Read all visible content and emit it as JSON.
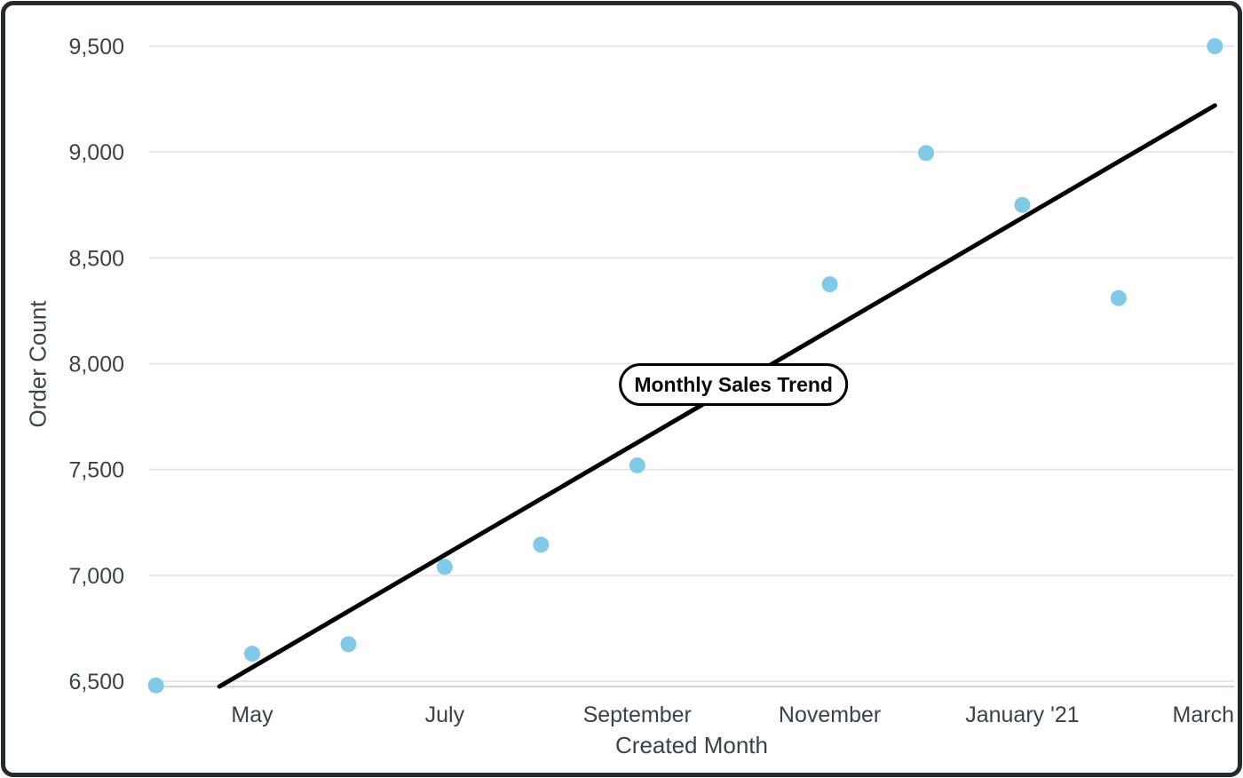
{
  "frame": {
    "border_color": "#242B2E",
    "background": "#FFFFFF"
  },
  "chart_data": {
    "type": "scatter",
    "xlabel": "Created Month",
    "ylabel": "Order Count",
    "annotation": {
      "label": "Monthly Sales Trend",
      "x": 6,
      "y": 7900
    },
    "x_ticks": [
      {
        "position": 1,
        "label": "May"
      },
      {
        "position": 3,
        "label": "July"
      },
      {
        "position": 5,
        "label": "September"
      },
      {
        "position": 7,
        "label": "November"
      },
      {
        "position": 9,
        "label": "January '21"
      },
      {
        "position": 11,
        "label": "March"
      }
    ],
    "y_ticks": [
      {
        "value": 6500,
        "label": "6,500"
      },
      {
        "value": 7000,
        "label": "7,000"
      },
      {
        "value": 7500,
        "label": "7,500"
      },
      {
        "value": 8000,
        "label": "8,000"
      },
      {
        "value": 8500,
        "label": "8,500"
      },
      {
        "value": 9000,
        "label": "9,000"
      },
      {
        "value": 9500,
        "label": "9,500"
      }
    ],
    "points": [
      {
        "x": 0,
        "y": 6480
      },
      {
        "x": 1,
        "y": 6630
      },
      {
        "x": 2,
        "y": 6675
      },
      {
        "x": 3,
        "y": 7040
      },
      {
        "x": 4,
        "y": 7145
      },
      {
        "x": 5,
        "y": 7520
      },
      {
        "x": 7,
        "y": 8375
      },
      {
        "x": 8,
        "y": 8995
      },
      {
        "x": 9,
        "y": 8750
      },
      {
        "x": 10,
        "y": 8310
      },
      {
        "x": 11,
        "y": 9500
      }
    ],
    "trend_line": {
      "x1": 0.66,
      "y1": 6475,
      "x2": 11.0,
      "y2": 9220
    },
    "xlim": [
      -0.07,
      11.2
    ],
    "ylim": [
      6475,
      9500
    ],
    "grid": "horizontal-only",
    "legend": "none",
    "colors": {
      "point": "#80C9E7",
      "trend_line": "#000000",
      "gridline": "#E7E7E7",
      "x_axis_line": "#CBD4E8",
      "text": "#3A424A"
    }
  }
}
